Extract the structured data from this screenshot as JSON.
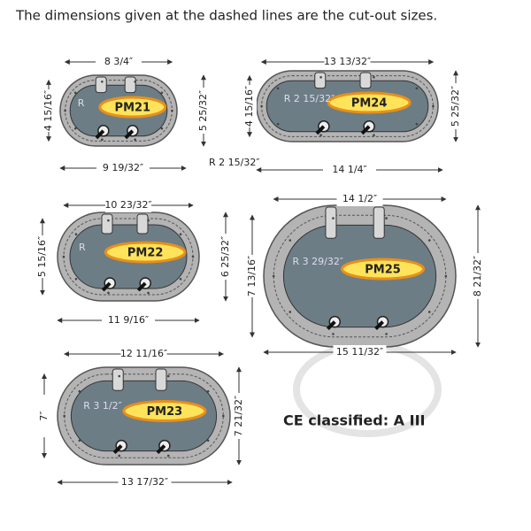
{
  "heading": "The dimensions given at the dashed lines are the cut-out sizes.",
  "portlights": [
    {
      "name": "PM21",
      "top": "8 3/4″",
      "left": "4 15/16″",
      "right": "5 25/32″",
      "bottom": "9 19/32″",
      "radius": "R",
      "radius_note": "R 2 15/32″"
    },
    {
      "name": "PM24",
      "top": "13 13/32″",
      "left": "4 15/16″",
      "right": "5 25/32″",
      "bottom": "14 1/4″",
      "radius": "R 2 15/32″"
    },
    {
      "name": "PM22",
      "top": "10 23/32″",
      "left": "5 15/16″",
      "right": "6 25/32″",
      "bottom": "11 9/16″",
      "radius": "R"
    },
    {
      "name": "PM25",
      "top": "14 1/2″",
      "left": "7 13/16″",
      "right": "8 21/32″",
      "bottom": "15 11/32″",
      "radius": "R 3 29/32″"
    },
    {
      "name": "PM23",
      "top": "12 11/16″",
      "left": "7″",
      "right": "7 21/32″",
      "bottom": "13 17/32″",
      "radius": "R 3 1/2″"
    }
  ],
  "classification": "CE classified: A III"
}
